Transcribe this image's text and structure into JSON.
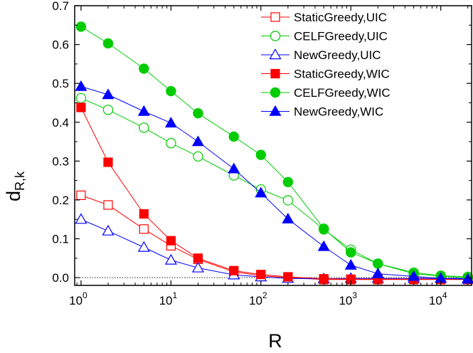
{
  "chart_data": {
    "type": "line",
    "xscale": "log",
    "xlim": [
      0.85,
      22000
    ],
    "ylim": [
      -0.02,
      0.7
    ],
    "xlabel": "R",
    "ylabel": "d",
    "ylabel_sub": "R,k",
    "x_ticks": [
      {
        "value": 1,
        "base": "10",
        "exp": "0"
      },
      {
        "value": 10,
        "base": "10",
        "exp": "1"
      },
      {
        "value": 100,
        "base": "10",
        "exp": "2"
      },
      {
        "value": 1000,
        "base": "10",
        "exp": "3"
      },
      {
        "value": 10000,
        "base": "10",
        "exp": "4"
      }
    ],
    "y_ticks": [
      {
        "value": 0.0,
        "label": "0.0"
      },
      {
        "value": 0.1,
        "label": "0.1"
      },
      {
        "value": 0.2,
        "label": "0.2"
      },
      {
        "value": 0.3,
        "label": "0.3"
      },
      {
        "value": 0.4,
        "label": "0.4"
      },
      {
        "value": 0.5,
        "label": "0.5"
      },
      {
        "value": 0.6,
        "label": "0.6"
      },
      {
        "value": 0.7,
        "label": "0.7"
      }
    ],
    "reference_line": {
      "y": 0,
      "style": "dotted"
    },
    "legend_position": "top-right",
    "x": [
      1,
      2,
      5,
      10,
      20,
      50,
      100,
      200,
      500,
      1000,
      2000,
      5000,
      10000,
      20000
    ],
    "series": [
      {
        "name": "StaticGreedy,UIC",
        "color": "#ff0000",
        "marker": "square",
        "filled": false,
        "values": [
          0.212,
          0.187,
          0.125,
          0.082,
          0.047,
          0.015,
          0.005,
          0.0,
          -0.005,
          -0.005,
          -0.005,
          -0.005,
          -0.005,
          -0.005
        ]
      },
      {
        "name": "CELFGreedy,UIC",
        "color": "#00cc00",
        "marker": "circle",
        "filled": false,
        "values": [
          0.462,
          0.432,
          0.386,
          0.346,
          0.312,
          0.263,
          0.227,
          0.199,
          0.124,
          0.072,
          0.036,
          0.013,
          0.005,
          0.002
        ]
      },
      {
        "name": "NewGreedy,UIC",
        "color": "#0000ff",
        "marker": "triangle",
        "filled": false,
        "values": [
          0.15,
          0.12,
          0.078,
          0.045,
          0.025,
          0.007,
          0.002,
          -0.002,
          -0.003,
          -0.002,
          -0.002,
          -0.002,
          -0.002,
          -0.002
        ]
      },
      {
        "name": "StaticGreedy,WIC",
        "color": "#ff0000",
        "marker": "square",
        "filled": true,
        "values": [
          0.438,
          0.297,
          0.164,
          0.095,
          0.05,
          0.018,
          0.008,
          0.002,
          -0.003,
          -0.004,
          -0.004,
          -0.004,
          -0.004,
          -0.004
        ]
      },
      {
        "name": "CELFGreedy,WIC",
        "color": "#00cc00",
        "marker": "circle",
        "filled": true,
        "values": [
          0.646,
          0.603,
          0.538,
          0.48,
          0.423,
          0.363,
          0.316,
          0.246,
          0.126,
          0.065,
          0.036,
          0.01,
          0.004,
          -0.001
        ]
      },
      {
        "name": "NewGreedy,WIC",
        "color": "#0000ff",
        "marker": "triangle",
        "filled": true,
        "values": [
          0.492,
          0.471,
          0.428,
          0.398,
          0.35,
          0.28,
          0.218,
          0.151,
          0.08,
          0.032,
          0.01,
          0.003,
          -0.002,
          -0.004
        ]
      }
    ]
  }
}
